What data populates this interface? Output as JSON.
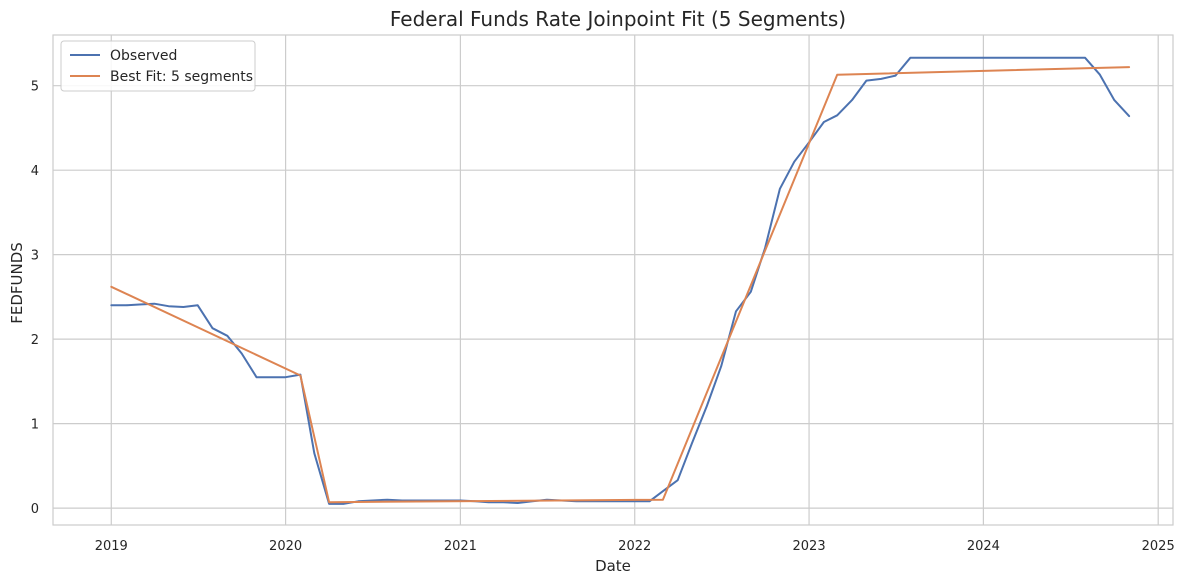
{
  "chart_data": {
    "type": "line",
    "title": "Federal Funds Rate Joinpoint Fit (5 Segments)",
    "xlabel": "Date",
    "ylabel": "FEDFUNDS",
    "xlim": [
      "2018-09-01",
      "2025-02-01"
    ],
    "ylim": [
      -0.2,
      5.6
    ],
    "x_ticks": [
      "2019-01-01",
      "2020-01-01",
      "2021-01-01",
      "2022-01-01",
      "2023-01-01",
      "2024-01-01",
      "2025-01-01"
    ],
    "x_tick_labels": [
      "2019",
      "2020",
      "2021",
      "2022",
      "2023",
      "2024",
      "2025"
    ],
    "y_ticks": [
      0,
      1,
      2,
      3,
      4,
      5
    ],
    "y_tick_labels": [
      "0",
      "1",
      "2",
      "3",
      "4",
      "5"
    ],
    "grid": true,
    "legend": {
      "position": "top-left"
    },
    "series": [
      {
        "name": "Observed",
        "color": "#4c72b0",
        "points": [
          [
            "2019-01-01",
            2.4
          ],
          [
            "2019-02-01",
            2.4
          ],
          [
            "2019-03-01",
            2.41
          ],
          [
            "2019-04-01",
            2.42
          ],
          [
            "2019-05-01",
            2.39
          ],
          [
            "2019-06-01",
            2.38
          ],
          [
            "2019-07-01",
            2.4
          ],
          [
            "2019-08-01",
            2.13
          ],
          [
            "2019-09-01",
            2.04
          ],
          [
            "2019-10-01",
            1.83
          ],
          [
            "2019-11-01",
            1.55
          ],
          [
            "2019-12-01",
            1.55
          ],
          [
            "2020-01-01",
            1.55
          ],
          [
            "2020-02-01",
            1.58
          ],
          [
            "2020-03-01",
            0.65
          ],
          [
            "2020-04-01",
            0.05
          ],
          [
            "2020-05-01",
            0.05
          ],
          [
            "2020-06-01",
            0.08
          ],
          [
            "2020-07-01",
            0.09
          ],
          [
            "2020-08-01",
            0.1
          ],
          [
            "2020-09-01",
            0.09
          ],
          [
            "2020-10-01",
            0.09
          ],
          [
            "2020-11-01",
            0.09
          ],
          [
            "2020-12-01",
            0.09
          ],
          [
            "2021-01-01",
            0.09
          ],
          [
            "2021-02-01",
            0.08
          ],
          [
            "2021-03-01",
            0.07
          ],
          [
            "2021-04-01",
            0.07
          ],
          [
            "2021-05-01",
            0.06
          ],
          [
            "2021-06-01",
            0.08
          ],
          [
            "2021-07-01",
            0.1
          ],
          [
            "2021-08-01",
            0.09
          ],
          [
            "2021-09-01",
            0.08
          ],
          [
            "2021-10-01",
            0.08
          ],
          [
            "2021-11-01",
            0.08
          ],
          [
            "2021-12-01",
            0.08
          ],
          [
            "2022-01-01",
            0.08
          ],
          [
            "2022-02-01",
            0.08
          ],
          [
            "2022-03-01",
            0.2
          ],
          [
            "2022-04-01",
            0.33
          ],
          [
            "2022-05-01",
            0.77
          ],
          [
            "2022-06-01",
            1.21
          ],
          [
            "2022-07-01",
            1.68
          ],
          [
            "2022-08-01",
            2.33
          ],
          [
            "2022-09-01",
            2.56
          ],
          [
            "2022-10-01",
            3.08
          ],
          [
            "2022-11-01",
            3.78
          ],
          [
            "2022-12-01",
            4.1
          ],
          [
            "2023-01-01",
            4.33
          ],
          [
            "2023-02-01",
            4.57
          ],
          [
            "2023-03-01",
            4.65
          ],
          [
            "2023-04-01",
            4.83
          ],
          [
            "2023-05-01",
            5.06
          ],
          [
            "2023-06-01",
            5.08
          ],
          [
            "2023-07-01",
            5.12
          ],
          [
            "2023-08-01",
            5.33
          ],
          [
            "2023-09-01",
            5.33
          ],
          [
            "2023-10-01",
            5.33
          ],
          [
            "2023-11-01",
            5.33
          ],
          [
            "2023-12-01",
            5.33
          ],
          [
            "2024-01-01",
            5.33
          ],
          [
            "2024-02-01",
            5.33
          ],
          [
            "2024-03-01",
            5.33
          ],
          [
            "2024-04-01",
            5.33
          ],
          [
            "2024-05-01",
            5.33
          ],
          [
            "2024-06-01",
            5.33
          ],
          [
            "2024-07-01",
            5.33
          ],
          [
            "2024-08-01",
            5.33
          ],
          [
            "2024-09-01",
            5.13
          ],
          [
            "2024-10-01",
            4.83
          ],
          [
            "2024-11-01",
            4.64
          ]
        ]
      },
      {
        "name": "Best Fit: 5 segments",
        "color": "#dd8452",
        "points": [
          [
            "2019-01-01",
            2.62
          ],
          [
            "2020-02-01",
            1.57
          ],
          [
            "2020-04-01",
            0.07
          ],
          [
            "2022-03-01",
            0.1
          ],
          [
            "2023-03-01",
            5.13
          ],
          [
            "2024-11-01",
            5.22
          ]
        ]
      }
    ]
  }
}
